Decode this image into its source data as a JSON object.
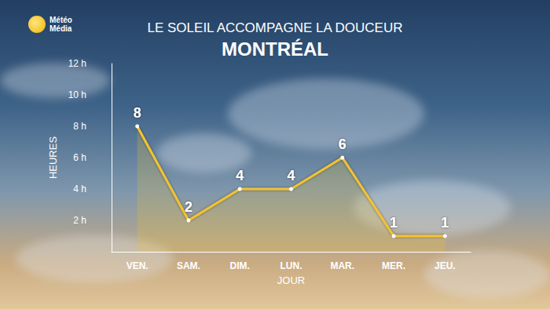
{
  "chart_data": {
    "type": "area",
    "title": "LE SOLEIL ACCOMPAGNE LA DOUCEUR",
    "subtitle": "MONTRÉAL",
    "logo": "Météo Média",
    "x_label": "JOUR",
    "y_label": "HEURES",
    "categories": [
      "VEN.",
      "SAM.",
      "DIM.",
      "LUN.",
      "MAR.",
      "MER.",
      "JEU."
    ],
    "values": [
      8,
      2,
      4,
      4,
      6,
      1,
      1
    ],
    "color": "#f2c230",
    "marker": "circle",
    "ylim": [
      0,
      12
    ],
    "yticks": [
      {
        "value": 2,
        "label": "2 h"
      },
      {
        "value": 4,
        "label": "4 h"
      },
      {
        "value": 6,
        "label": "6 h"
      },
      {
        "value": 8,
        "label": "8 h"
      },
      {
        "value": 10,
        "label": "10 h"
      },
      {
        "value": 12,
        "label": "12 h"
      }
    ],
    "grid": false,
    "data_labels": true
  }
}
